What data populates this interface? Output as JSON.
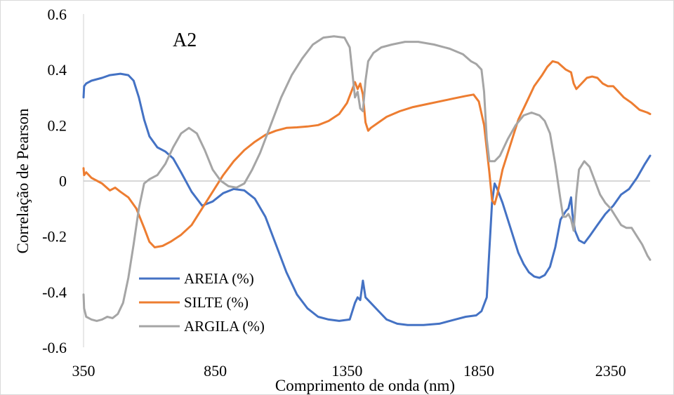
{
  "chart_data": {
    "type": "line",
    "annotation": "A2",
    "xlabel": "Comprimento de onda (nm)",
    "ylabel": "Correlação de Pearson",
    "xlim": [
      350,
      2500
    ],
    "ylim": [
      -0.6,
      0.6
    ],
    "x_ticks": [
      350,
      850,
      1350,
      1850,
      2350
    ],
    "y_ticks": [
      0.6,
      0.4,
      0.2,
      0,
      -0.2,
      -0.4,
      -0.6
    ],
    "y_tick_labels": [
      "0.6",
      "0.4",
      "0.2",
      "0",
      "-0.2",
      "-0.4",
      "-0.6"
    ],
    "x_tick_labels": [
      "350",
      "850",
      "1350",
      "1850",
      "2350"
    ],
    "grid": false,
    "legend_position": "lower-left",
    "series": [
      {
        "name": "AREIA (%)",
        "color": "#4472c4",
        "points": [
          [
            350,
            0.3
          ],
          [
            352,
            0.34
          ],
          [
            360,
            0.35
          ],
          [
            380,
            0.36
          ],
          [
            420,
            0.37
          ],
          [
            450,
            0.38
          ],
          [
            490,
            0.385
          ],
          [
            520,
            0.38
          ],
          [
            540,
            0.36
          ],
          [
            560,
            0.3
          ],
          [
            580,
            0.22
          ],
          [
            600,
            0.16
          ],
          [
            630,
            0.12
          ],
          [
            660,
            0.105
          ],
          [
            690,
            0.08
          ],
          [
            720,
            0.03
          ],
          [
            760,
            -0.04
          ],
          [
            800,
            -0.09
          ],
          [
            840,
            -0.075
          ],
          [
            880,
            -0.045
          ],
          [
            920,
            -0.03
          ],
          [
            960,
            -0.035
          ],
          [
            1000,
            -0.065
          ],
          [
            1040,
            -0.13
          ],
          [
            1080,
            -0.23
          ],
          [
            1120,
            -0.33
          ],
          [
            1160,
            -0.41
          ],
          [
            1200,
            -0.46
          ],
          [
            1240,
            -0.49
          ],
          [
            1280,
            -0.5
          ],
          [
            1320,
            -0.505
          ],
          [
            1360,
            -0.5
          ],
          [
            1380,
            -0.44
          ],
          [
            1390,
            -0.42
          ],
          [
            1400,
            -0.43
          ],
          [
            1410,
            -0.36
          ],
          [
            1420,
            -0.42
          ],
          [
            1440,
            -0.44
          ],
          [
            1460,
            -0.46
          ],
          [
            1480,
            -0.48
          ],
          [
            1500,
            -0.5
          ],
          [
            1540,
            -0.515
          ],
          [
            1580,
            -0.52
          ],
          [
            1640,
            -0.52
          ],
          [
            1700,
            -0.515
          ],
          [
            1760,
            -0.5
          ],
          [
            1800,
            -0.49
          ],
          [
            1840,
            -0.485
          ],
          [
            1860,
            -0.47
          ],
          [
            1880,
            -0.42
          ],
          [
            1890,
            -0.25
          ],
          [
            1900,
            -0.08
          ],
          [
            1910,
            -0.01
          ],
          [
            1920,
            -0.03
          ],
          [
            1940,
            -0.08
          ],
          [
            1960,
            -0.14
          ],
          [
            1980,
            -0.2
          ],
          [
            2000,
            -0.26
          ],
          [
            2020,
            -0.3
          ],
          [
            2040,
            -0.33
          ],
          [
            2060,
            -0.345
          ],
          [
            2080,
            -0.35
          ],
          [
            2100,
            -0.34
          ],
          [
            2120,
            -0.31
          ],
          [
            2140,
            -0.24
          ],
          [
            2160,
            -0.14
          ],
          [
            2180,
            -0.11
          ],
          [
            2190,
            -0.1
          ],
          [
            2200,
            -0.06
          ],
          [
            2205,
            -0.12
          ],
          [
            2215,
            -0.18
          ],
          [
            2230,
            -0.215
          ],
          [
            2250,
            -0.225
          ],
          [
            2270,
            -0.2
          ],
          [
            2300,
            -0.16
          ],
          [
            2330,
            -0.12
          ],
          [
            2360,
            -0.09
          ],
          [
            2390,
            -0.05
          ],
          [
            2420,
            -0.03
          ],
          [
            2450,
            0.01
          ],
          [
            2480,
            0.06
          ],
          [
            2500,
            0.09
          ]
        ]
      },
      {
        "name": "SILTE (%)",
        "color": "#ed7d31",
        "points": [
          [
            350,
            0.045
          ],
          [
            352,
            0.02
          ],
          [
            360,
            0.03
          ],
          [
            380,
            0.01
          ],
          [
            400,
            0.0
          ],
          [
            420,
            -0.01
          ],
          [
            450,
            -0.035
          ],
          [
            470,
            -0.025
          ],
          [
            490,
            -0.04
          ],
          [
            520,
            -0.06
          ],
          [
            550,
            -0.1
          ],
          [
            580,
            -0.17
          ],
          [
            600,
            -0.22
          ],
          [
            620,
            -0.24
          ],
          [
            650,
            -0.235
          ],
          [
            680,
            -0.22
          ],
          [
            720,
            -0.195
          ],
          [
            760,
            -0.16
          ],
          [
            800,
            -0.1
          ],
          [
            840,
            -0.04
          ],
          [
            880,
            0.02
          ],
          [
            920,
            0.07
          ],
          [
            960,
            0.11
          ],
          [
            1000,
            0.14
          ],
          [
            1040,
            0.165
          ],
          [
            1080,
            0.18
          ],
          [
            1120,
            0.19
          ],
          [
            1160,
            0.192
          ],
          [
            1200,
            0.195
          ],
          [
            1240,
            0.2
          ],
          [
            1280,
            0.215
          ],
          [
            1320,
            0.24
          ],
          [
            1350,
            0.28
          ],
          [
            1370,
            0.33
          ],
          [
            1380,
            0.355
          ],
          [
            1390,
            0.33
          ],
          [
            1400,
            0.35
          ],
          [
            1410,
            0.31
          ],
          [
            1420,
            0.21
          ],
          [
            1430,
            0.18
          ],
          [
            1440,
            0.19
          ],
          [
            1470,
            0.21
          ],
          [
            1500,
            0.23
          ],
          [
            1550,
            0.25
          ],
          [
            1600,
            0.265
          ],
          [
            1650,
            0.275
          ],
          [
            1700,
            0.285
          ],
          [
            1750,
            0.295
          ],
          [
            1800,
            0.305
          ],
          [
            1830,
            0.31
          ],
          [
            1850,
            0.285
          ],
          [
            1870,
            0.2
          ],
          [
            1890,
            0.03
          ],
          [
            1900,
            -0.07
          ],
          [
            1910,
            -0.085
          ],
          [
            1920,
            -0.05
          ],
          [
            1940,
            0.04
          ],
          [
            1960,
            0.1
          ],
          [
            1980,
            0.16
          ],
          [
            2000,
            0.22
          ],
          [
            2030,
            0.28
          ],
          [
            2060,
            0.34
          ],
          [
            2090,
            0.38
          ],
          [
            2110,
            0.41
          ],
          [
            2130,
            0.43
          ],
          [
            2150,
            0.425
          ],
          [
            2180,
            0.4
          ],
          [
            2200,
            0.39
          ],
          [
            2210,
            0.35
          ],
          [
            2220,
            0.33
          ],
          [
            2240,
            0.35
          ],
          [
            2260,
            0.37
          ],
          [
            2280,
            0.375
          ],
          [
            2300,
            0.37
          ],
          [
            2320,
            0.35
          ],
          [
            2340,
            0.34
          ],
          [
            2360,
            0.34
          ],
          [
            2380,
            0.32
          ],
          [
            2400,
            0.3
          ],
          [
            2430,
            0.28
          ],
          [
            2460,
            0.255
          ],
          [
            2490,
            0.245
          ],
          [
            2500,
            0.24
          ]
        ]
      },
      {
        "name": "ARGILA (%)",
        "color": "#a5a5a5",
        "points": [
          [
            350,
            -0.41
          ],
          [
            352,
            -0.46
          ],
          [
            360,
            -0.49
          ],
          [
            380,
            -0.5
          ],
          [
            400,
            -0.505
          ],
          [
            420,
            -0.5
          ],
          [
            440,
            -0.49
          ],
          [
            460,
            -0.495
          ],
          [
            480,
            -0.48
          ],
          [
            500,
            -0.44
          ],
          [
            520,
            -0.35
          ],
          [
            540,
            -0.23
          ],
          [
            560,
            -0.1
          ],
          [
            580,
            -0.01
          ],
          [
            600,
            0.005
          ],
          [
            630,
            0.02
          ],
          [
            660,
            0.06
          ],
          [
            690,
            0.12
          ],
          [
            720,
            0.17
          ],
          [
            750,
            0.19
          ],
          [
            780,
            0.17
          ],
          [
            810,
            0.11
          ],
          [
            840,
            0.04
          ],
          [
            870,
            0.0
          ],
          [
            900,
            -0.02
          ],
          [
            930,
            -0.025
          ],
          [
            960,
            -0.01
          ],
          [
            990,
            0.04
          ],
          [
            1020,
            0.1
          ],
          [
            1060,
            0.2
          ],
          [
            1100,
            0.3
          ],
          [
            1140,
            0.38
          ],
          [
            1180,
            0.44
          ],
          [
            1220,
            0.49
          ],
          [
            1260,
            0.515
          ],
          [
            1300,
            0.52
          ],
          [
            1340,
            0.515
          ],
          [
            1360,
            0.48
          ],
          [
            1380,
            0.3
          ],
          [
            1390,
            0.32
          ],
          [
            1400,
            0.26
          ],
          [
            1410,
            0.25
          ],
          [
            1420,
            0.36
          ],
          [
            1430,
            0.43
          ],
          [
            1450,
            0.46
          ],
          [
            1480,
            0.48
          ],
          [
            1520,
            0.49
          ],
          [
            1570,
            0.5
          ],
          [
            1620,
            0.5
          ],
          [
            1680,
            0.49
          ],
          [
            1740,
            0.475
          ],
          [
            1790,
            0.455
          ],
          [
            1820,
            0.43
          ],
          [
            1840,
            0.42
          ],
          [
            1860,
            0.4
          ],
          [
            1870,
            0.32
          ],
          [
            1880,
            0.15
          ],
          [
            1890,
            0.07
          ],
          [
            1910,
            0.07
          ],
          [
            1930,
            0.09
          ],
          [
            1960,
            0.15
          ],
          [
            1990,
            0.2
          ],
          [
            2020,
            0.235
          ],
          [
            2050,
            0.245
          ],
          [
            2080,
            0.235
          ],
          [
            2100,
            0.215
          ],
          [
            2120,
            0.17
          ],
          [
            2140,
            0.06
          ],
          [
            2160,
            -0.07
          ],
          [
            2170,
            -0.13
          ],
          [
            2180,
            -0.13
          ],
          [
            2190,
            -0.12
          ],
          [
            2200,
            -0.14
          ],
          [
            2210,
            -0.18
          ],
          [
            2220,
            -0.05
          ],
          [
            2230,
            0.04
          ],
          [
            2250,
            0.07
          ],
          [
            2270,
            0.05
          ],
          [
            2290,
            0.0
          ],
          [
            2310,
            -0.05
          ],
          [
            2330,
            -0.08
          ],
          [
            2350,
            -0.1
          ],
          [
            2370,
            -0.13
          ],
          [
            2390,
            -0.16
          ],
          [
            2410,
            -0.17
          ],
          [
            2430,
            -0.17
          ],
          [
            2450,
            -0.2
          ],
          [
            2470,
            -0.23
          ],
          [
            2490,
            -0.27
          ],
          [
            2500,
            -0.285
          ]
        ]
      }
    ]
  }
}
